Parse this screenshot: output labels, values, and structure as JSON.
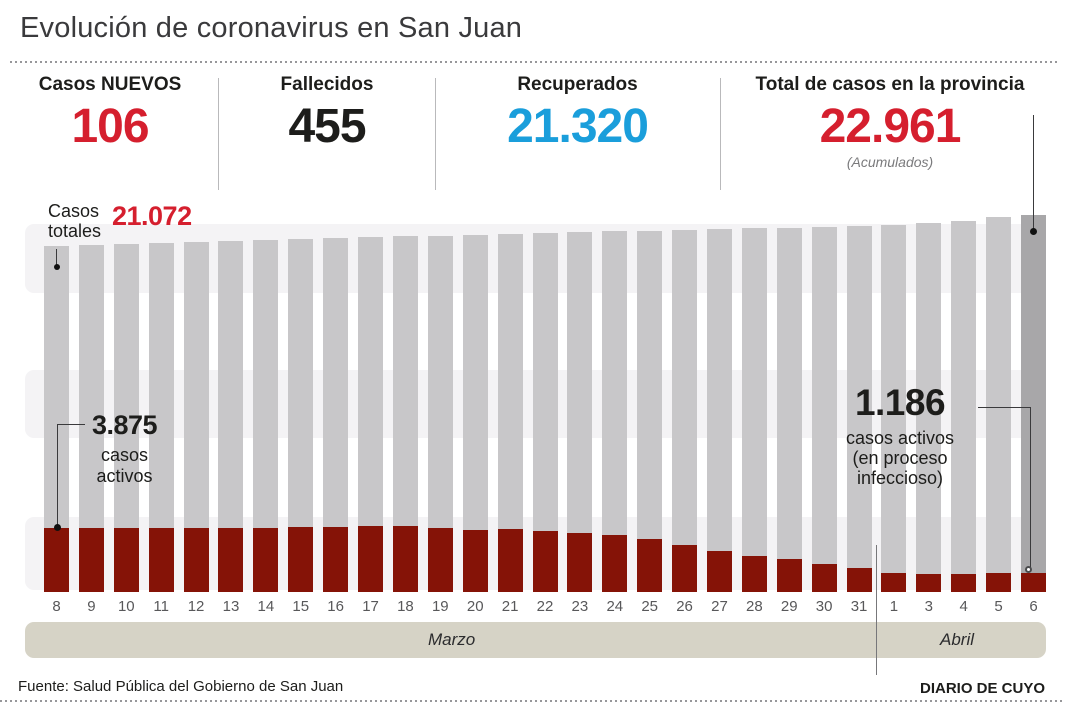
{
  "header": {
    "title": "Evolución de coronavirus en San Juan"
  },
  "stats": [
    {
      "label": "Casos NUEVOS",
      "value": "106",
      "color": "#d51f2e"
    },
    {
      "label": "Fallecidos",
      "value": "455",
      "color": "#1d1d1b"
    },
    {
      "label": "Recuperados",
      "value": "21.320",
      "color": "#1a9edb"
    },
    {
      "label": "Total de casos en la provincia",
      "value": "22.961",
      "note": "(Acumulados)",
      "color": "#d51f2e"
    }
  ],
  "annotations": {
    "first_total_label_line1": "Casos",
    "first_total_label_line2": "totales",
    "first_total_value": "21.072",
    "first_active_value": "3.875",
    "first_active_line1": "casos",
    "first_active_line2": "activos",
    "last_active_value": "1.186",
    "last_active_line1": "casos activos",
    "last_active_line2": "(en proceso",
    "last_active_line3": "infeccioso)"
  },
  "chart_data": {
    "type": "bar",
    "title": "Evolución de coronavirus en San Juan",
    "categories": [
      "8",
      "9",
      "10",
      "11",
      "12",
      "13",
      "14",
      "15",
      "16",
      "17",
      "18",
      "19",
      "20",
      "21",
      "22",
      "23",
      "24",
      "25",
      "26",
      "27",
      "28",
      "29",
      "30",
      "31",
      "1",
      "3",
      "4",
      "5",
      "6"
    ],
    "months": [
      {
        "label": "Marzo",
        "span": [
          0,
          23
        ]
      },
      {
        "label": "Abril",
        "span": [
          24,
          28
        ]
      }
    ],
    "series": [
      {
        "name": "Casos totales",
        "color": "#c8c7c9",
        "values": [
          21072,
          21135,
          21197,
          21258,
          21318,
          21377,
          21435,
          21492,
          21548,
          21603,
          21657,
          21710,
          21762,
          21813,
          21863,
          21912,
          21960,
          22007,
          22053,
          22098,
          22142,
          22185,
          22227,
          22268,
          22380,
          22500,
          22620,
          22855,
          22961
        ]
      },
      {
        "name": "Casos activos (en proceso infeccioso)",
        "color": "#851307",
        "values": [
          3875,
          3880,
          3890,
          3900,
          3905,
          3910,
          3920,
          3930,
          3950,
          3990,
          4000,
          3890,
          3780,
          3830,
          3715,
          3590,
          3470,
          3230,
          2860,
          2500,
          2190,
          2010,
          1705,
          1460,
          1160,
          1100,
          1100,
          1155,
          1186
        ]
      }
    ],
    "ylim": [
      0,
      22961
    ],
    "grid": "horizontal-bands",
    "legend_position": "none",
    "highlight_last_bar_color": "#a8a7a9",
    "labeled_points": {
      "first_total": 21072,
      "last_total": 22961,
      "first_active": 3875,
      "last_active": 1186
    }
  },
  "footer": {
    "source": "Fuente: Salud Pública del Gobierno de San Juan",
    "credit": "DIARIO DE CUYO"
  }
}
